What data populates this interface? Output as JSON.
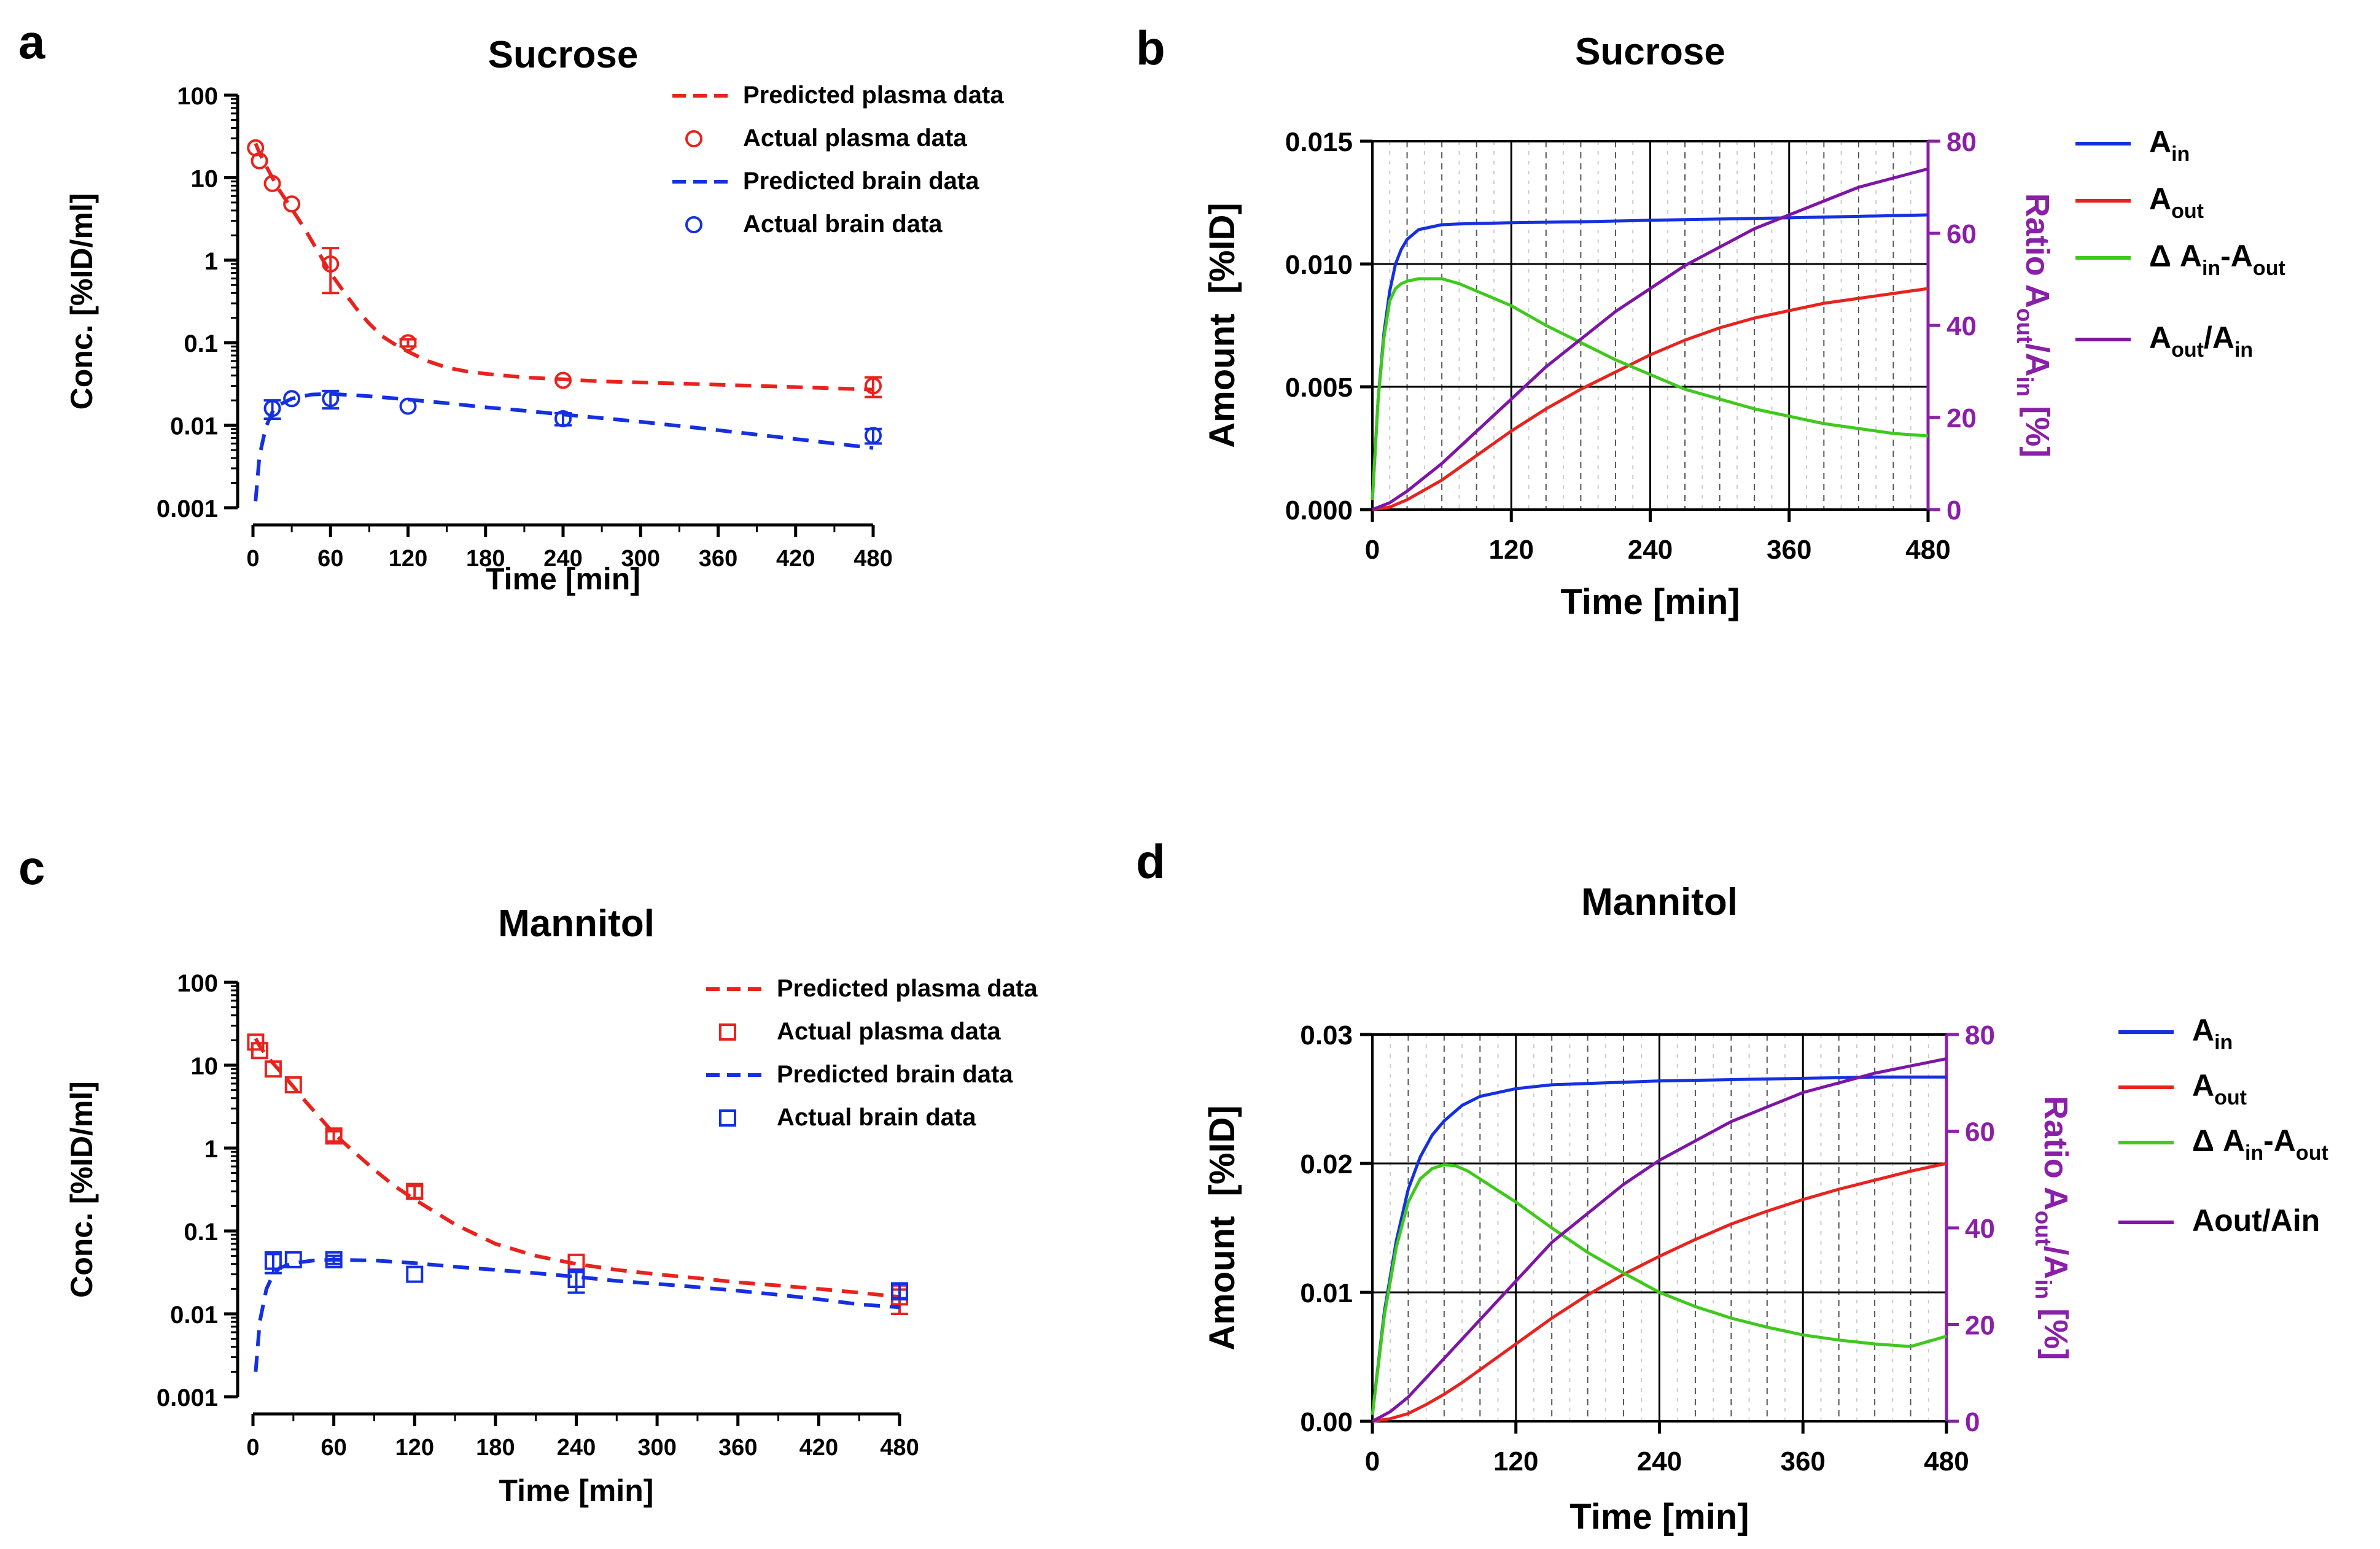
{
  "colors": {
    "red": "#e8231e",
    "blue": "#1530e0",
    "green": "#3fc91c",
    "purple": "#7d16a6",
    "axis": "#000000",
    "ratio_axis": "#8a1fa8"
  },
  "chart_data": [
    {
      "panel": "a",
      "type": "scatter",
      "title": "Sucrose",
      "xlabel": "Time [min]",
      "ylabel": "Conc. [%ID/ml]",
      "yscale": "log",
      "xlim": [
        0,
        480
      ],
      "ylim": [
        0.001,
        100
      ],
      "x_ticks": [
        0,
        60,
        120,
        180,
        240,
        300,
        360,
        420,
        480
      ],
      "y_ticks": [
        "0.001",
        "0.01",
        "0.1",
        "1",
        "10",
        "100"
      ],
      "legend_position": "top-right",
      "marker": "circle",
      "series": [
        {
          "name": "Predicted plasma data",
          "role": "line",
          "color": "red",
          "x": [
            2,
            5,
            10,
            15,
            20,
            30,
            40,
            50,
            60,
            70,
            80,
            90,
            100,
            110,
            120,
            135,
            150,
            165,
            180,
            210,
            240,
            270,
            300,
            330,
            360,
            390,
            420,
            450,
            480
          ],
          "y": [
            26,
            20,
            14,
            10,
            7.2,
            4.2,
            2.4,
            1.3,
            0.7,
            0.42,
            0.26,
            0.17,
            0.12,
            0.095,
            0.078,
            0.06,
            0.05,
            0.045,
            0.042,
            0.038,
            0.036,
            0.034,
            0.033,
            0.032,
            0.031,
            0.03,
            0.029,
            0.028,
            0.027
          ]
        },
        {
          "name": "Actual plasma data",
          "role": "points",
          "color": "red",
          "x": [
            2,
            5,
            15,
            30,
            60,
            120,
            240,
            480
          ],
          "y": [
            23,
            16,
            8.5,
            4.8,
            0.9,
            0.1,
            0.035,
            0.03
          ],
          "err": [
            0,
            0,
            0,
            0,
            0.5,
            0.01,
            0,
            0.008
          ]
        },
        {
          "name": "Predicted brain data",
          "role": "line",
          "color": "blue",
          "x": [
            2,
            5,
            10,
            15,
            20,
            30,
            45,
            60,
            90,
            120,
            150,
            180,
            210,
            240,
            270,
            300,
            330,
            360,
            390,
            420,
            450,
            480
          ],
          "y": [
            0.0012,
            0.0042,
            0.0095,
            0.0145,
            0.0175,
            0.021,
            0.0235,
            0.024,
            0.0225,
            0.0205,
            0.0185,
            0.0165,
            0.015,
            0.0135,
            0.0122,
            0.011,
            0.0098,
            0.0087,
            0.0077,
            0.0068,
            0.006,
            0.0053
          ]
        },
        {
          "name": "Actual brain data",
          "role": "points",
          "color": "blue",
          "x": [
            15,
            30,
            60,
            120,
            240,
            480
          ],
          "y": [
            0.016,
            0.021,
            0.021,
            0.017,
            0.012,
            0.0075
          ],
          "err": [
            0.004,
            0,
            0.005,
            0,
            0.002,
            0.0015
          ]
        }
      ]
    },
    {
      "panel": "b",
      "type": "line",
      "title": "Sucrose",
      "xlabel": "Time [min]",
      "ylabel": "Amount  [%ID]",
      "ylabel_right_parts": [
        "Ratio A",
        "out",
        "/A",
        "in",
        " [%]"
      ],
      "xlim": [
        0,
        480
      ],
      "ylim": [
        0,
        0.015
      ],
      "ylim_right": [
        0,
        80
      ],
      "x_ticks": [
        0,
        120,
        240,
        360,
        480
      ],
      "y_ticks": [
        "0.000",
        "0.005",
        "0.010",
        "0.015"
      ],
      "y_ticks_right": [
        0,
        20,
        40,
        60,
        80
      ],
      "legend_position": "right",
      "legend": [
        {
          "parts": [
            "A",
            "in"
          ],
          "color": "blue"
        },
        {
          "parts": [
            "A",
            "out"
          ],
          "color": "red"
        },
        {
          "parts": [
            "Δ A",
            "in",
            "-A",
            "out"
          ],
          "color": "green"
        },
        {
          "parts": [
            "A",
            "out",
            "/A",
            "in"
          ],
          "color": "purple"
        }
      ],
      "series": [
        {
          "name": "Ain",
          "axis": "left",
          "color": "blue",
          "x": [
            0,
            5,
            10,
            15,
            20,
            25,
            30,
            40,
            50,
            60,
            75,
            90,
            120,
            180,
            240,
            300,
            360,
            420,
            480
          ],
          "y": [
            0.0004,
            0.0045,
            0.0072,
            0.0089,
            0.01,
            0.0106,
            0.011,
            0.0114,
            0.0115,
            0.0116,
            0.01163,
            0.01165,
            0.01168,
            0.01172,
            0.01178,
            0.01183,
            0.01188,
            0.01194,
            0.012
          ]
        },
        {
          "name": "Aout",
          "axis": "left",
          "color": "red",
          "x": [
            0,
            15,
            30,
            60,
            90,
            120,
            150,
            180,
            210,
            240,
            270,
            300,
            330,
            360,
            390,
            420,
            450,
            480
          ],
          "y": [
            0,
            0.0001,
            0.0004,
            0.0012,
            0.0022,
            0.0032,
            0.0041,
            0.0049,
            0.0056,
            0.0063,
            0.0069,
            0.0074,
            0.0078,
            0.0081,
            0.0084,
            0.0086,
            0.0088,
            0.009
          ]
        },
        {
          "name": "ΔAin-Aout",
          "axis": "left",
          "color": "green",
          "x": [
            0,
            5,
            10,
            15,
            20,
            25,
            30,
            40,
            50,
            60,
            75,
            90,
            120,
            150,
            180,
            210,
            240,
            270,
            300,
            330,
            360,
            390,
            420,
            450,
            480
          ],
          "y": [
            0.0004,
            0.0045,
            0.007,
            0.0085,
            0.009,
            0.0092,
            0.0093,
            0.0094,
            0.0094,
            0.0094,
            0.0092,
            0.0089,
            0.0083,
            0.0075,
            0.0068,
            0.0061,
            0.0055,
            0.0049,
            0.0045,
            0.0041,
            0.0038,
            0.0035,
            0.0033,
            0.0031,
            0.003
          ]
        },
        {
          "name": "Aout/Ain",
          "axis": "right",
          "color": "purple",
          "x": [
            0,
            15,
            30,
            45,
            60,
            90,
            120,
            150,
            180,
            210,
            240,
            270,
            300,
            330,
            360,
            390,
            420,
            450,
            480
          ],
          "y": [
            0,
            1.5,
            4,
            7,
            10,
            17,
            24,
            31,
            37,
            43,
            48,
            53,
            57,
            61,
            64,
            67,
            70,
            72,
            74
          ]
        }
      ]
    },
    {
      "panel": "c",
      "type": "scatter",
      "title": "Mannitol",
      "xlabel": "Time [min]",
      "ylabel": "Conc. [%ID/ml]",
      "yscale": "log",
      "xlim": [
        0,
        480
      ],
      "ylim": [
        0.001,
        100
      ],
      "x_ticks": [
        0,
        60,
        120,
        180,
        240,
        300,
        360,
        420,
        480
      ],
      "y_ticks": [
        "0.001",
        "0.01",
        "0.1",
        "1",
        "10",
        "100"
      ],
      "legend_position": "top-right",
      "marker": "square",
      "series": [
        {
          "name": "Predicted plasma data",
          "role": "line",
          "color": "red",
          "x": [
            2,
            5,
            10,
            15,
            20,
            30,
            40,
            50,
            60,
            75,
            90,
            105,
            120,
            150,
            180,
            210,
            240,
            270,
            300,
            330,
            360,
            390,
            420,
            450,
            480
          ],
          "y": [
            21,
            17,
            13,
            10.5,
            8.5,
            5.5,
            3.5,
            2.3,
            1.5,
            0.9,
            0.55,
            0.35,
            0.24,
            0.12,
            0.07,
            0.05,
            0.04,
            0.034,
            0.03,
            0.027,
            0.024,
            0.022,
            0.02,
            0.018,
            0.016
          ]
        },
        {
          "name": "Actual plasma data",
          "role": "points",
          "color": "red",
          "x": [
            2,
            5,
            15,
            30,
            60,
            120,
            240,
            480
          ],
          "y": [
            19,
            15,
            9,
            5.8,
            1.4,
            0.3,
            0.042,
            0.016
          ],
          "err": [
            0,
            0,
            0,
            0,
            0.2,
            0.05,
            0,
            0.006
          ]
        },
        {
          "name": "Predicted brain data",
          "role": "line",
          "color": "blue",
          "x": [
            2,
            5,
            10,
            15,
            20,
            30,
            45,
            60,
            90,
            120,
            150,
            180,
            210,
            240,
            270,
            300,
            330,
            360,
            390,
            420,
            450,
            480
          ],
          "y": [
            0.002,
            0.008,
            0.02,
            0.03,
            0.036,
            0.041,
            0.044,
            0.045,
            0.044,
            0.041,
            0.037,
            0.034,
            0.031,
            0.028,
            0.025,
            0.023,
            0.021,
            0.019,
            0.017,
            0.015,
            0.013,
            0.012
          ]
        },
        {
          "name": "Actual brain data",
          "role": "points",
          "color": "blue",
          "x": [
            15,
            30,
            60,
            120,
            240,
            480
          ],
          "y": [
            0.043,
            0.045,
            0.045,
            0.03,
            0.026,
            0.019
          ],
          "err": [
            0.012,
            0,
            0.005,
            0,
            0.008,
            0.004
          ]
        }
      ]
    },
    {
      "panel": "d",
      "type": "line",
      "title": "Mannitol",
      "xlabel": "Time [min]",
      "ylabel": "Amount  [%ID]",
      "ylabel_right_parts": [
        "Ratio A",
        "out",
        "/A",
        "in",
        " [%]"
      ],
      "xlim": [
        0,
        480
      ],
      "ylim": [
        0,
        0.03
      ],
      "ylim_right": [
        0,
        80
      ],
      "x_ticks": [
        0,
        120,
        240,
        360,
        480
      ],
      "y_ticks": [
        "0.00",
        "0.01",
        "0.02",
        "0.03"
      ],
      "y_ticks_right": [
        0,
        20,
        40,
        60,
        80
      ],
      "legend_position": "right",
      "legend": [
        {
          "parts": [
            "A",
            "in"
          ],
          "color": "blue"
        },
        {
          "parts": [
            "A",
            "out"
          ],
          "color": "red"
        },
        {
          "parts": [
            "Δ A",
            "in",
            "-A",
            "out"
          ],
          "color": "green"
        },
        {
          "parts": [
            "Aout/Ain"
          ],
          "color": "purple"
        }
      ],
      "series": [
        {
          "name": "Ain",
          "axis": "left",
          "color": "blue",
          "x": [
            0,
            10,
            20,
            30,
            40,
            50,
            60,
            75,
            90,
            120,
            150,
            180,
            240,
            300,
            360,
            420,
            480
          ],
          "y": [
            0.0005,
            0.0085,
            0.014,
            0.018,
            0.0205,
            0.0222,
            0.0233,
            0.0245,
            0.0252,
            0.0258,
            0.0261,
            0.0262,
            0.0264,
            0.0265,
            0.0266,
            0.0267,
            0.0267
          ]
        },
        {
          "name": "Aout",
          "axis": "left",
          "color": "red",
          "x": [
            0,
            15,
            30,
            45,
            60,
            75,
            90,
            120,
            150,
            180,
            210,
            240,
            270,
            300,
            330,
            360,
            390,
            420,
            450,
            480
          ],
          "y": [
            0,
            0.0002,
            0.0006,
            0.0013,
            0.0021,
            0.003,
            0.004,
            0.006,
            0.008,
            0.0098,
            0.0114,
            0.0128,
            0.0141,
            0.0153,
            0.0163,
            0.0172,
            0.018,
            0.0187,
            0.0194,
            0.02
          ]
        },
        {
          "name": "ΔAin-Aout",
          "axis": "left",
          "color": "green",
          "x": [
            0,
            10,
            20,
            30,
            40,
            50,
            60,
            70,
            80,
            90,
            120,
            150,
            180,
            210,
            240,
            270,
            300,
            330,
            360,
            390,
            420,
            450,
            480
          ],
          "y": [
            0.0005,
            0.0082,
            0.0135,
            0.017,
            0.0188,
            0.0196,
            0.0199,
            0.0198,
            0.0194,
            0.0188,
            0.017,
            0.015,
            0.0131,
            0.0115,
            0.01,
            0.0089,
            0.008,
            0.0073,
            0.0067,
            0.0063,
            0.006,
            0.0058,
            0.0066
          ]
        },
        {
          "name": "Aout/Ain",
          "axis": "right",
          "color": "purple",
          "x": [
            0,
            15,
            30,
            45,
            60,
            90,
            120,
            150,
            180,
            210,
            240,
            270,
            300,
            330,
            360,
            390,
            420,
            450,
            480
          ],
          "y": [
            0,
            2,
            5,
            9,
            13,
            21,
            29,
            37,
            43,
            49,
            54,
            58,
            62,
            65,
            68,
            70,
            72,
            73.5,
            75
          ]
        }
      ]
    }
  ]
}
